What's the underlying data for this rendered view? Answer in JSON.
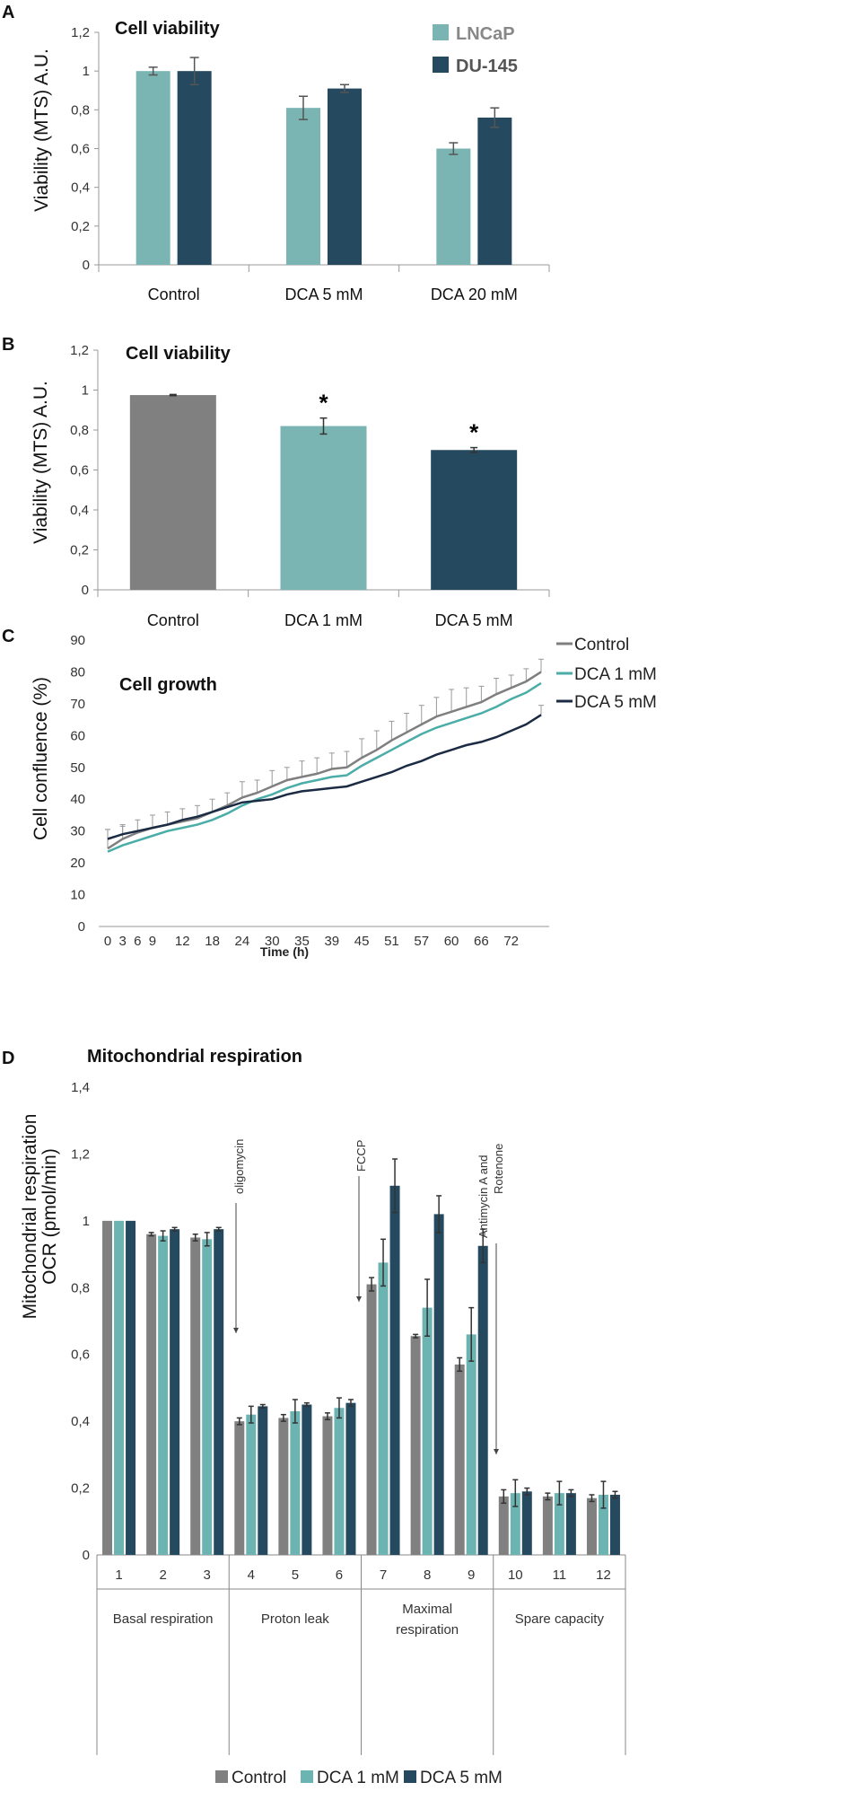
{
  "chart_data": [
    {
      "panel": "A",
      "type": "bar",
      "title": "Cell viability",
      "ylabel": "Viability (MTS) A.U.",
      "xlabel": "",
      "ylim": [
        0,
        1.2
      ],
      "yticks": [
        "0",
        "0,2",
        "0,4",
        "0,6",
        "0,8",
        "1",
        "1,2"
      ],
      "categories": [
        "Control",
        "DCA 5 mM",
        "DCA 20 mM"
      ],
      "series": [
        {
          "name": "LNCaP",
          "color": "#7ab5b3",
          "values": [
            1.0,
            0.81,
            0.6
          ],
          "errors": [
            0.02,
            0.06,
            0.03
          ]
        },
        {
          "name": "DU-145",
          "color": "#254a60",
          "values": [
            1.0,
            0.91,
            0.76
          ],
          "errors": [
            0.07,
            0.02,
            0.05
          ]
        }
      ],
      "legend": "top-right"
    },
    {
      "panel": "B",
      "type": "bar",
      "title": "Cell viability",
      "ylabel": "Viability (MTS) A.U.",
      "xlabel": "",
      "ylim": [
        0,
        1.2
      ],
      "yticks": [
        "0",
        "0,2",
        "0,4",
        "0,6",
        "0,8",
        "1",
        "1,2"
      ],
      "categories": [
        "Control",
        "DCA 1 mM",
        "DCA 5 mM"
      ],
      "values": [
        0.975,
        0.82,
        0.7
      ],
      "errors": [
        0.003,
        0.04,
        0.012
      ],
      "colors": [
        "#808080",
        "#7ab5b3",
        "#254a60"
      ],
      "annotations": [
        "",
        "*",
        "*"
      ]
    },
    {
      "panel": "C",
      "type": "line",
      "title": "Cell growth",
      "ylabel": "Cell confluence (%)",
      "xlabel": "Time (h)",
      "ylim": [
        0,
        90
      ],
      "yticks": [
        "0",
        "10",
        "20",
        "30",
        "40",
        "50",
        "60",
        "70",
        "80",
        "90"
      ],
      "xticks": [
        "0",
        "3",
        "6",
        "9",
        "12",
        "18",
        "24",
        "30",
        "35",
        "39",
        "45",
        "51",
        "57",
        "60",
        "66",
        "72"
      ],
      "series": [
        {
          "name": "Control",
          "color": "#7f7f7f",
          "values": [
            24.5,
            27.5,
            29.5,
            31.0,
            32.0,
            33.0,
            34.0,
            36.0,
            38.0,
            40.5,
            42.0,
            44.0,
            46.0,
            47.0,
            48.0,
            49.5,
            50.0,
            53.0,
            55.5,
            58.5,
            61.0,
            63.5,
            66.0,
            67.5,
            69.0,
            70.5,
            73.0,
            75.0,
            77.0,
            80.0
          ],
          "errors": [
            6,
            4,
            4,
            4,
            4,
            4,
            4,
            4,
            4,
            5,
            4,
            5,
            4,
            5,
            5,
            5,
            5,
            6,
            6,
            6,
            6,
            6,
            6,
            7,
            6,
            5,
            5,
            4,
            4,
            4
          ]
        },
        {
          "name": "DCA 1 mM",
          "color": "#4bada8",
          "values": [
            23.5,
            25.5,
            27.0,
            28.5,
            30.0,
            31.0,
            32.0,
            33.5,
            35.5,
            38.0,
            40.0,
            41.5,
            43.5,
            45.0,
            46.0,
            47.0,
            47.5,
            50.5,
            53.0,
            55.5,
            58.0,
            60.5,
            62.5,
            64.0,
            65.5,
            67.0,
            69.0,
            71.5,
            73.5,
            76.5
          ],
          "errors": [
            0,
            0,
            0,
            0,
            0,
            0,
            0,
            0,
            0,
            0,
            0,
            0,
            0,
            0,
            0,
            0,
            0,
            0,
            0,
            0,
            0,
            0,
            0,
            0,
            0,
            0,
            0,
            0,
            0,
            0
          ]
        },
        {
          "name": "DCA 5 mM",
          "color": "#1b2b44",
          "values": [
            27.5,
            29.0,
            30.0,
            31.0,
            32.0,
            33.5,
            34.5,
            36.0,
            37.5,
            39.0,
            39.5,
            40.0,
            41.5,
            42.5,
            43.0,
            43.5,
            44.0,
            45.5,
            47.0,
            48.5,
            50.5,
            52.0,
            54.0,
            55.5,
            57.0,
            58.0,
            59.5,
            61.5,
            63.5,
            66.5
          ],
          "errors": [
            3,
            3,
            0,
            0,
            0,
            0,
            0,
            0,
            0,
            0,
            0,
            0,
            0,
            0,
            0,
            0,
            0,
            0,
            0,
            0,
            0,
            0,
            0,
            0,
            0,
            0,
            0,
            0,
            0,
            3
          ]
        }
      ],
      "legend": "top-right"
    },
    {
      "panel": "D",
      "type": "bar",
      "title": "Mitochondrial respiration",
      "ylabel": [
        "Mitochondrial respiration",
        "OCR (pmol/min)"
      ],
      "xlabel": "",
      "ylim": [
        0,
        1.4
      ],
      "yticks": [
        "0",
        "0,2",
        "0,4",
        "0,6",
        "0,8",
        "1",
        "1,2",
        "1,4"
      ],
      "categories": [
        "1",
        "2",
        "3",
        "4",
        "5",
        "6",
        "7",
        "8",
        "9",
        "10",
        "11",
        "12"
      ],
      "groups": [
        "Basal respiration",
        "Proton leak",
        "Maximal respiration",
        "Spare capacity"
      ],
      "series": [
        {
          "name": "Control",
          "color": "#808080",
          "values": [
            1.0,
            0.96,
            0.95,
            0.4,
            0.41,
            0.415,
            0.81,
            0.655,
            0.57,
            0.175,
            0.175,
            0.17
          ],
          "errors": [
            0.0,
            0.005,
            0.01,
            0.01,
            0.01,
            0.01,
            0.02,
            0.005,
            0.02,
            0.02,
            0.01,
            0.01
          ]
        },
        {
          "name": "DCA 1 mM",
          "color": "#6cb4b2",
          "values": [
            1.0,
            0.955,
            0.945,
            0.42,
            0.43,
            0.44,
            0.875,
            0.74,
            0.66,
            0.185,
            0.185,
            0.18
          ],
          "errors": [
            0.0,
            0.015,
            0.02,
            0.025,
            0.035,
            0.03,
            0.07,
            0.085,
            0.08,
            0.04,
            0.035,
            0.04
          ]
        },
        {
          "name": "DCA 5 mM",
          "color": "#254a60",
          "values": [
            1.0,
            0.975,
            0.975,
            0.445,
            0.45,
            0.455,
            1.105,
            1.02,
            0.925,
            0.19,
            0.185,
            0.18
          ],
          "errors": [
            0.0,
            0.005,
            0.005,
            0.005,
            0.005,
            0.01,
            0.08,
            0.055,
            0.05,
            0.01,
            0.01,
            0.01
          ]
        }
      ],
      "annotations": [
        "oligomycin",
        "FCCP",
        "Antimycin A and",
        "Rotenone"
      ],
      "legend": "bottom"
    }
  ],
  "panel_labels": {
    "a": "A",
    "b": "B",
    "c": "C",
    "d": "D"
  }
}
